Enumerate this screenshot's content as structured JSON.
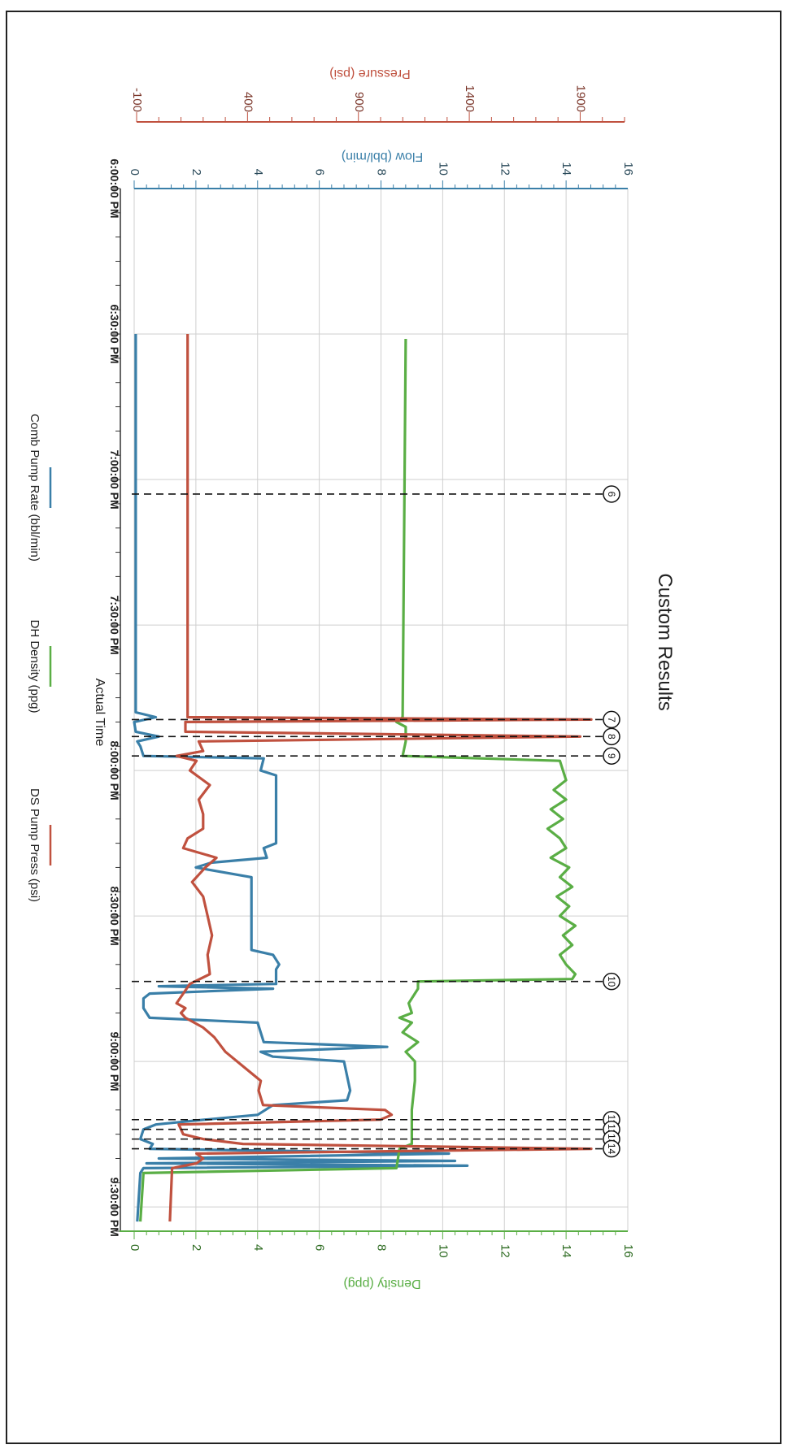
{
  "chart_data": {
    "type": "line",
    "title": "Custom Results",
    "xlabel": "Actual Time",
    "x_ticks": [
      "6:00:00 PM",
      "6:30:00 PM",
      "7:00:00 PM",
      "7:30:00 PM",
      "8:00:00 PM",
      "8:30:00 PM",
      "9:00:00 PM",
      "9:30:00 PM"
    ],
    "xlim_minutes_after_6pm": [
      0,
      215
    ],
    "grid": true,
    "legend_position": "bottom",
    "colors": {
      "flow": "#3a7fa8",
      "pressure": "#c0513f",
      "density": "#5aae45",
      "frame": "#222222"
    },
    "axes": {
      "flow": {
        "label": "Flow (bbl/min)",
        "range": [
          0,
          16
        ],
        "ticks": [
          "0",
          "2",
          "4",
          "6",
          "8",
          "10",
          "12",
          "14",
          "16"
        ]
      },
      "pressure": {
        "label": "Pressure (psi)",
        "range": [
          -100,
          2100
        ],
        "ticks": [
          "-100",
          "400",
          "900",
          "1400",
          "1900"
        ]
      },
      "density": {
        "label": "Density (ppg)",
        "range": [
          0,
          16
        ],
        "ticks": [
          "0",
          "2",
          "4",
          "6",
          "8",
          "10",
          "12",
          "14",
          "16"
        ]
      }
    },
    "series": [
      {
        "name": "Comb Pump Rate (bbl/min)",
        "axis": "flow",
        "color": "#3a7fa8",
        "points": [
          [
            30,
            0.05
          ],
          [
            108,
            0.05
          ],
          [
            109,
            0.7
          ],
          [
            110,
            0.0
          ],
          [
            112,
            0.05
          ],
          [
            113,
            0.8
          ],
          [
            114,
            0.1
          ],
          [
            115,
            0.2
          ],
          [
            117,
            0.3
          ],
          [
            117.5,
            4.2
          ],
          [
            120,
            4.1
          ],
          [
            121,
            4.6
          ],
          [
            135,
            4.6
          ],
          [
            136,
            4.2
          ],
          [
            138,
            4.3
          ],
          [
            139,
            2.5
          ],
          [
            140,
            2.0
          ],
          [
            142,
            3.8
          ],
          [
            157,
            3.8
          ],
          [
            158,
            4.5
          ],
          [
            160,
            4.7
          ],
          [
            161,
            4.6
          ],
          [
            164,
            4.6
          ],
          [
            164.5,
            0.8
          ],
          [
            165,
            4.5
          ],
          [
            166,
            0.5
          ],
          [
            167,
            0.3
          ],
          [
            169,
            0.3
          ],
          [
            171,
            0.5
          ],
          [
            172,
            4.0
          ],
          [
            176,
            4.2
          ],
          [
            177,
            8.2
          ],
          [
            178,
            4.1
          ],
          [
            179,
            4.5
          ],
          [
            180,
            6.8
          ],
          [
            186,
            7.0
          ],
          [
            188,
            6.9
          ],
          [
            189,
            4.5
          ],
          [
            191,
            4.0
          ],
          [
            192,
            2.3
          ],
          [
            193,
            0.7
          ],
          [
            194,
            0.3
          ],
          [
            196,
            0.2
          ],
          [
            197,
            0.6
          ],
          [
            198,
            0.5
          ],
          [
            199,
            10.2
          ],
          [
            200,
            0.8
          ],
          [
            200.5,
            10.4
          ],
          [
            201,
            0.4
          ],
          [
            201.5,
            10.8
          ],
          [
            202,
            0.3
          ],
          [
            203,
            0.2
          ],
          [
            213,
            0.1
          ]
        ]
      },
      {
        "name": "DH Density (ppg)",
        "axis": "density",
        "color": "#5aae45",
        "points": [
          [
            31,
            8.8
          ],
          [
            109,
            8.7
          ],
          [
            110,
            8.5
          ],
          [
            111,
            8.8
          ],
          [
            114,
            8.8
          ],
          [
            117,
            8.7
          ],
          [
            118,
            13.8
          ],
          [
            122,
            14.0
          ],
          [
            124,
            13.6
          ],
          [
            126,
            14.0
          ],
          [
            128,
            13.5
          ],
          [
            130,
            13.9
          ],
          [
            132,
            13.4
          ],
          [
            134,
            13.8
          ],
          [
            136,
            14.0
          ],
          [
            138,
            13.5
          ],
          [
            140,
            14.1
          ],
          [
            142,
            13.8
          ],
          [
            144,
            14.2
          ],
          [
            146,
            13.7
          ],
          [
            148,
            14.1
          ],
          [
            150,
            13.8
          ],
          [
            152,
            14.3
          ],
          [
            154,
            13.9
          ],
          [
            156,
            14.2
          ],
          [
            158,
            13.8
          ],
          [
            160,
            14.0
          ],
          [
            162,
            14.3
          ],
          [
            163,
            14.2
          ],
          [
            163.5,
            9.2
          ],
          [
            165,
            9.2
          ],
          [
            168,
            8.9
          ],
          [
            170,
            9.0
          ],
          [
            171,
            8.6
          ],
          [
            172,
            9.0
          ],
          [
            174,
            8.7
          ],
          [
            176,
            9.2
          ],
          [
            178,
            8.8
          ],
          [
            180,
            9.1
          ],
          [
            184,
            9.1
          ],
          [
            190,
            9.0
          ],
          [
            197,
            9.0
          ],
          [
            198,
            8.6
          ],
          [
            202,
            8.5
          ],
          [
            203,
            0.3
          ],
          [
            213,
            0.2
          ]
        ]
      },
      {
        "name": "DS Pump Press (psi)",
        "axis": "pressure",
        "color": "#c0513f",
        "points": [
          [
            30,
            130
          ],
          [
            109,
            130
          ],
          [
            109.5,
            1950
          ],
          [
            110,
            120
          ],
          [
            112,
            120
          ],
          [
            113,
            1900
          ],
          [
            114,
            180
          ],
          [
            116,
            200
          ],
          [
            117,
            80
          ],
          [
            118,
            170
          ],
          [
            120,
            140
          ],
          [
            123,
            230
          ],
          [
            126,
            180
          ],
          [
            129,
            200
          ],
          [
            132,
            200
          ],
          [
            134,
            130
          ],
          [
            136,
            110
          ],
          [
            138,
            260
          ],
          [
            140,
            210
          ],
          [
            143,
            150
          ],
          [
            146,
            200
          ],
          [
            150,
            220
          ],
          [
            154,
            240
          ],
          [
            158,
            220
          ],
          [
            162,
            230
          ],
          [
            164,
            140
          ],
          [
            166,
            110
          ],
          [
            168,
            80
          ],
          [
            169,
            120
          ],
          [
            170,
            100
          ],
          [
            171,
            120
          ],
          [
            173,
            200
          ],
          [
            175,
            250
          ],
          [
            178,
            300
          ],
          [
            181,
            380
          ],
          [
            184,
            460
          ],
          [
            186,
            450
          ],
          [
            189,
            470
          ],
          [
            190,
            1020
          ],
          [
            191,
            1050
          ],
          [
            192,
            1000
          ],
          [
            193,
            90
          ],
          [
            195,
            110
          ],
          [
            196,
            200
          ],
          [
            197,
            380
          ],
          [
            198,
            1950
          ],
          [
            199,
            170
          ],
          [
            200,
            200
          ],
          [
            201,
            170
          ],
          [
            202,
            60
          ],
          [
            213,
            50
          ]
        ]
      }
    ],
    "annotations": [
      {
        "label": "6",
        "time_minutes": 63
      },
      {
        "label": "7",
        "time_minutes": 109.5
      },
      {
        "label": "8",
        "time_minutes": 113
      },
      {
        "label": "9",
        "time_minutes": 117
      },
      {
        "label": "10",
        "time_minutes": 163.5
      },
      {
        "label": "11",
        "time_minutes": 192
      },
      {
        "label": "12",
        "time_minutes": 194
      },
      {
        "label": "13",
        "time_minutes": 196
      },
      {
        "label": "14",
        "time_minutes": 198
      }
    ]
  }
}
